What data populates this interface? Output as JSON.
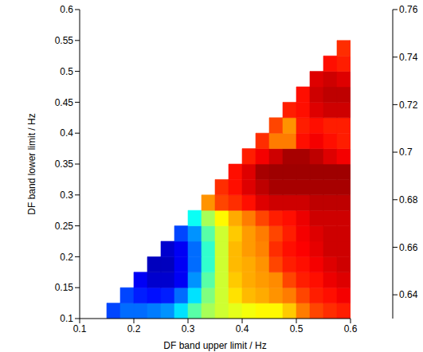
{
  "chart_data": {
    "type": "heatmap",
    "x_label": "DF band upper limit / Hz",
    "y_label": "DF band lower limit / Hz",
    "xlim": [
      0.1,
      0.6
    ],
    "xticks": [
      0.1,
      0.2,
      0.3,
      0.4,
      0.5,
      0.6
    ],
    "ylim": [
      0.1,
      0.6
    ],
    "yticks": [
      0.1,
      0.15,
      0.2,
      0.25,
      0.3,
      0.35,
      0.4,
      0.45,
      0.5,
      0.55,
      0.6
    ],
    "x": [
      0.1125,
      0.1375,
      0.1625,
      0.1875,
      0.2125,
      0.2375,
      0.2625,
      0.2875,
      0.3125,
      0.3375,
      0.3625,
      0.3875,
      0.4125,
      0.4375,
      0.4625,
      0.4875,
      0.5125,
      0.5375,
      0.5625,
      0.5875
    ],
    "y": [
      0.1125,
      0.1375,
      0.1625,
      0.1875,
      0.2125,
      0.2375,
      0.2625,
      0.2875,
      0.3125,
      0.3375,
      0.3625,
      0.3875,
      0.4125,
      0.4375,
      0.4625,
      0.4875,
      0.5125,
      0.5375
    ],
    "z": [
      [
        null,
        null,
        0.655,
        0.66,
        0.66,
        0.662,
        0.665,
        0.675,
        0.69,
        0.7,
        0.705,
        0.708,
        0.71,
        0.712,
        0.712,
        0.718,
        0.728,
        0.735,
        0.738,
        0.74
      ],
      [
        null,
        null,
        null,
        0.655,
        0.65,
        0.648,
        0.65,
        0.66,
        0.675,
        0.695,
        0.705,
        0.715,
        0.72,
        0.722,
        0.725,
        0.728,
        0.735,
        0.74,
        0.742,
        0.745
      ],
      [
        null,
        null,
        null,
        null,
        0.645,
        0.64,
        0.64,
        0.645,
        0.665,
        0.69,
        0.705,
        0.718,
        0.722,
        0.724,
        0.726,
        0.735,
        0.74,
        0.742,
        0.746,
        0.748
      ],
      [
        null,
        null,
        null,
        null,
        null,
        0.638,
        0.638,
        0.645,
        0.66,
        0.685,
        0.705,
        0.72,
        0.722,
        0.725,
        0.735,
        0.74,
        0.742,
        0.745,
        0.748,
        0.75
      ],
      [
        null,
        null,
        null,
        null,
        null,
        null,
        0.64,
        0.645,
        0.66,
        0.685,
        0.705,
        0.72,
        0.724,
        0.727,
        0.738,
        0.742,
        0.744,
        0.747,
        0.75,
        0.75
      ],
      [
        null,
        null,
        null,
        null,
        null,
        null,
        null,
        0.655,
        0.665,
        0.69,
        0.705,
        0.718,
        0.724,
        0.728,
        0.735,
        0.74,
        0.745,
        0.748,
        0.75,
        0.75
      ],
      [
        null,
        null,
        null,
        null,
        null,
        null,
        null,
        null,
        0.68,
        0.7,
        0.712,
        0.722,
        0.728,
        0.735,
        0.74,
        0.742,
        0.746,
        0.75,
        0.75,
        0.75
      ],
      [
        null,
        null,
        null,
        null,
        null,
        null,
        null,
        null,
        null,
        0.725,
        0.735,
        0.738,
        0.742,
        0.748,
        0.75,
        0.75,
        0.75,
        0.752,
        0.752,
        0.752
      ],
      [
        null,
        null,
        null,
        null,
        null,
        null,
        null,
        null,
        null,
        null,
        0.738,
        0.742,
        0.748,
        0.752,
        0.755,
        0.755,
        0.755,
        0.755,
        0.755,
        0.755
      ],
      [
        null,
        null,
        null,
        null,
        null,
        null,
        null,
        null,
        null,
        null,
        null,
        0.742,
        0.748,
        0.755,
        0.756,
        0.756,
        0.756,
        0.756,
        0.756,
        0.756
      ],
      [
        null,
        null,
        null,
        null,
        null,
        null,
        null,
        null,
        null,
        null,
        null,
        null,
        0.74,
        0.745,
        0.75,
        0.755,
        0.755,
        0.752,
        0.748,
        0.745
      ],
      [
        null,
        null,
        null,
        null,
        null,
        null,
        null,
        null,
        null,
        null,
        null,
        null,
        null,
        0.738,
        0.728,
        0.728,
        0.742,
        0.745,
        0.742,
        0.74
      ],
      [
        null,
        null,
        null,
        null,
        null,
        null,
        null,
        null,
        null,
        null,
        null,
        null,
        null,
        null,
        0.735,
        0.725,
        0.74,
        0.742,
        0.74,
        0.74
      ],
      [
        null,
        null,
        null,
        null,
        null,
        null,
        null,
        null,
        null,
        null,
        null,
        null,
        null,
        null,
        null,
        0.74,
        0.742,
        0.748,
        0.75,
        0.75
      ],
      [
        null,
        null,
        null,
        null,
        null,
        null,
        null,
        null,
        null,
        null,
        null,
        null,
        null,
        null,
        null,
        null,
        0.742,
        0.75,
        0.752,
        0.752
      ],
      [
        null,
        null,
        null,
        null,
        null,
        null,
        null,
        null,
        null,
        null,
        null,
        null,
        null,
        null,
        null,
        null,
        null,
        0.748,
        0.75,
        0.748
      ],
      [
        null,
        null,
        null,
        null,
        null,
        null,
        null,
        null,
        null,
        null,
        null,
        null,
        null,
        null,
        null,
        null,
        null,
        null,
        0.742,
        0.74
      ],
      [
        null,
        null,
        null,
        null,
        null,
        null,
        null,
        null,
        null,
        null,
        null,
        null,
        null,
        null,
        null,
        null,
        null,
        null,
        null,
        0.738
      ]
    ],
    "colorbar": {
      "lim": [
        0.63,
        0.76
      ],
      "ticks": [
        0.64,
        0.66,
        0.68,
        0.7,
        0.72,
        0.74,
        0.76
      ]
    }
  }
}
